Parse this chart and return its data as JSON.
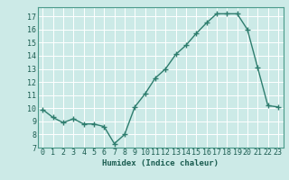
{
  "x": [
    0,
    1,
    2,
    3,
    4,
    5,
    6,
    7,
    8,
    9,
    10,
    11,
    12,
    13,
    14,
    15,
    16,
    17,
    18,
    19,
    20,
    21,
    22,
    23
  ],
  "y": [
    9.9,
    9.3,
    8.9,
    9.2,
    8.8,
    8.8,
    8.6,
    7.3,
    8.0,
    10.1,
    11.1,
    12.3,
    13.0,
    14.1,
    14.8,
    15.7,
    16.5,
    17.2,
    17.2,
    17.2,
    16.0,
    13.1,
    10.2,
    10.1
  ],
  "line_color": "#2e7d6e",
  "marker": "+",
  "marker_size": 4,
  "linewidth": 1.0,
  "background_color": "#cceae7",
  "grid_color": "#ffffff",
  "xlabel": "Humidex (Indice chaleur)",
  "ylabel": "",
  "xlim": [
    -0.5,
    23.5
  ],
  "ylim": [
    7,
    17.7
  ],
  "yticks": [
    7,
    8,
    9,
    10,
    11,
    12,
    13,
    14,
    15,
    16,
    17
  ],
  "xticks": [
    0,
    1,
    2,
    3,
    4,
    5,
    6,
    7,
    8,
    9,
    10,
    11,
    12,
    13,
    14,
    15,
    16,
    17,
    18,
    19,
    20,
    21,
    22,
    23
  ],
  "xtick_labels": [
    "0",
    "1",
    "2",
    "3",
    "4",
    "5",
    "6",
    "7",
    "8",
    "9",
    "10",
    "11",
    "12",
    "13",
    "14",
    "15",
    "16",
    "17",
    "18",
    "19",
    "20",
    "21",
    "22",
    "23"
  ],
  "xlabel_fontsize": 6.5,
  "tick_fontsize": 6,
  "spine_color": "#4a9a8a"
}
